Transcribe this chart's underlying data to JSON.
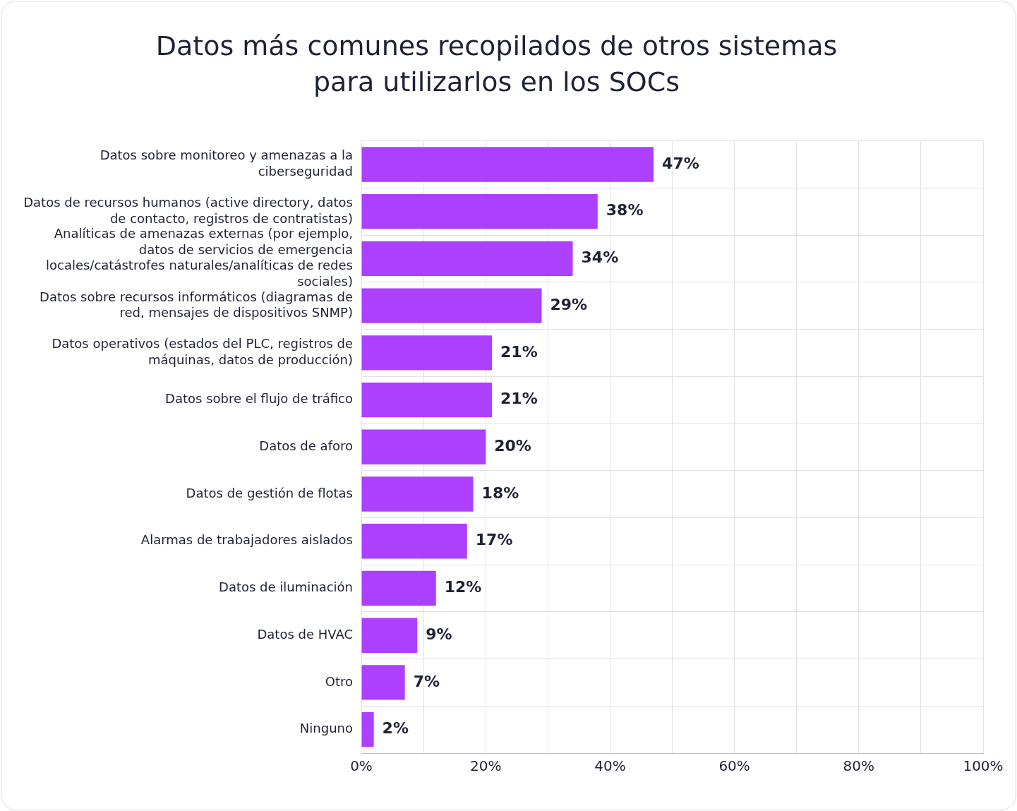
{
  "chart_data": {
    "type": "bar",
    "orientation": "horizontal",
    "title": "Datos más comunes recopilados de otros sistemas para utilizarlos en los SOCs",
    "categories": [
      "Datos sobre monitoreo y amenazas a la ciberseguridad",
      "Datos de recursos humanos (active directory, datos de contacto, registros de contratistas)",
      "Analíticas de amenazas externas (por ejemplo, datos de servicios de emergencia locales/catástrofes naturales/analíticas de redes sociales)",
      "Datos sobre recursos informáticos (diagramas de red, mensajes de dispositivos SNMP)",
      "Datos operativos (estados del PLC, registros de máquinas, datos de producción)",
      "Datos sobre el flujo de tráfico",
      "Datos de aforo",
      "Datos de gestión de flotas",
      "Alarmas de trabajadores aislados",
      "Datos de iluminación",
      "Datos de HVAC",
      "Otro",
      "Ninguno"
    ],
    "values": [
      47,
      38,
      34,
      29,
      21,
      21,
      20,
      18,
      17,
      12,
      9,
      7,
      2
    ],
    "value_labels": [
      "47%",
      "38%",
      "34%",
      "29%",
      "21%",
      "21%",
      "20%",
      "18%",
      "17%",
      "12%",
      "9%",
      "7%",
      "2%"
    ],
    "color": "#ad3fff",
    "xlim": [
      0,
      100
    ],
    "xticks": [
      {
        "value": 0,
        "label": "0%"
      },
      {
        "value": 10,
        "label": null
      },
      {
        "value": 20,
        "label": "20%"
      },
      {
        "value": 30,
        "label": null
      },
      {
        "value": 40,
        "label": "40%"
      },
      {
        "value": 50,
        "label": null
      },
      {
        "value": 60,
        "label": "60%"
      },
      {
        "value": 70,
        "label": null
      },
      {
        "value": 80,
        "label": "80%"
      },
      {
        "value": 90,
        "label": null
      },
      {
        "value": 100,
        "label": "100%"
      }
    ],
    "grid": true,
    "legend": false
  }
}
